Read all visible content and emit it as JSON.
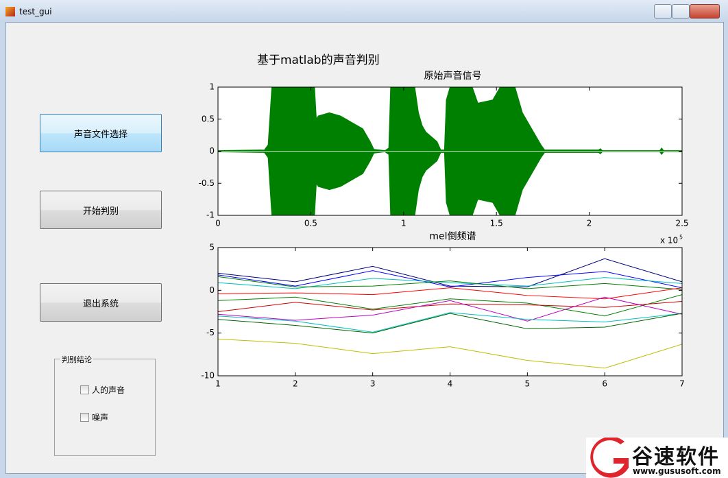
{
  "window": {
    "title": "test_gui"
  },
  "heading": "基于matlab的声音判别",
  "buttons": [
    "声音文件选择",
    "开始判别",
    "退出系统"
  ],
  "panel": {
    "title": "判别结论",
    "checkboxes": [
      "人的声音",
      "噪声"
    ]
  },
  "watermark": {
    "name": "谷速软件",
    "url": "www.gususoft.com"
  },
  "chart_data": [
    {
      "type": "waveform",
      "title": "原始声音信号",
      "color": "#008000",
      "x": [
        0,
        0.25,
        0.27,
        0.29,
        0.52,
        0.53,
        0.54,
        0.6,
        0.66,
        0.72,
        0.78,
        0.82,
        0.84,
        0.9,
        0.92,
        0.93,
        1.06,
        1.08,
        1.1,
        1.12,
        1.18,
        1.2,
        1.22,
        1.23,
        1.25,
        1.37,
        1.4,
        1.48,
        1.52,
        1.6,
        1.64,
        1.7,
        1.74,
        1.76,
        2.05,
        2.06,
        2.07,
        2.38,
        2.39,
        2.4,
        2.5
      ],
      "values": [
        0.01,
        0.02,
        0.1,
        1,
        1,
        0.5,
        0.55,
        0.6,
        0.55,
        0.45,
        0.35,
        0.15,
        0.03,
        0.01,
        0.05,
        1,
        1,
        0.6,
        0.4,
        0.3,
        0.15,
        0.02,
        0.02,
        0.8,
        1,
        1,
        0.75,
        0.8,
        1,
        1,
        0.6,
        0.3,
        0.1,
        0.02,
        0.02,
        0.04,
        0.01,
        0.01,
        0.05,
        0.01,
        0.01
      ],
      "xlim": [
        0,
        2.5
      ],
      "ylim": [
        -1,
        1
      ],
      "xticks": [
        0,
        0.5,
        1,
        1.5,
        2,
        2.5
      ],
      "yticks": [
        -1,
        -0.5,
        0,
        0.5,
        1
      ],
      "grid": false
    },
    {
      "type": "line",
      "title": "mel倒频谱",
      "y_scale_label": "x 10",
      "y_scale_exponent": "5",
      "x": [
        1,
        2,
        3,
        4,
        5,
        6,
        7
      ],
      "series": [
        {
          "color": "#00007f",
          "values": [
            2.0,
            1.0,
            2.8,
            0.5,
            0.4,
            3.7,
            1.0
          ]
        },
        {
          "color": "#0000ff",
          "values": [
            1.8,
            0.5,
            2.3,
            0.4,
            1.5,
            2.2,
            0.3
          ]
        },
        {
          "color": "#00bfbf",
          "values": [
            0.9,
            0.2,
            1.4,
            0.9,
            0.5,
            1.5,
            0.8
          ]
        },
        {
          "color": "#008000",
          "values": [
            1.6,
            0.4,
            0.5,
            1.1,
            0.2,
            0.8,
            0.1
          ]
        },
        {
          "color": "#ff0000",
          "values": [
            -0.4,
            -0.3,
            -0.5,
            0.3,
            -0.6,
            -1.0,
            0.3
          ]
        },
        {
          "color": "#008000",
          "values": [
            -1.2,
            -0.8,
            -2.2,
            -1.0,
            -1.5,
            -3.0,
            -0.5
          ]
        },
        {
          "color": "#cc0000",
          "values": [
            -2.5,
            -1.4,
            -2.3,
            -1.6,
            -1.7,
            -2.0,
            -1.3
          ]
        },
        {
          "color": "#bf00bf",
          "values": [
            -2.8,
            -3.5,
            -2.9,
            -1.2,
            -3.6,
            -0.8,
            -2.8
          ]
        },
        {
          "color": "#00bfbf",
          "values": [
            -3.0,
            -3.6,
            -4.9,
            -2.6,
            -3.4,
            -3.7,
            -2.7
          ]
        },
        {
          "color": "#006400",
          "values": [
            -3.4,
            -4.1,
            -5.0,
            -2.7,
            -4.5,
            -4.3,
            -2.7
          ]
        },
        {
          "color": "#bfbf00",
          "values": [
            -5.7,
            -6.2,
            -7.4,
            -6.6,
            -8.2,
            -9.1,
            -6.3
          ]
        }
      ],
      "xlim": [
        1,
        7
      ],
      "ylim": [
        -10,
        5
      ],
      "xticks": [
        1,
        2,
        3,
        4,
        5,
        6,
        7
      ],
      "yticks": [
        -10,
        -5,
        0,
        5
      ],
      "grid": false
    }
  ]
}
